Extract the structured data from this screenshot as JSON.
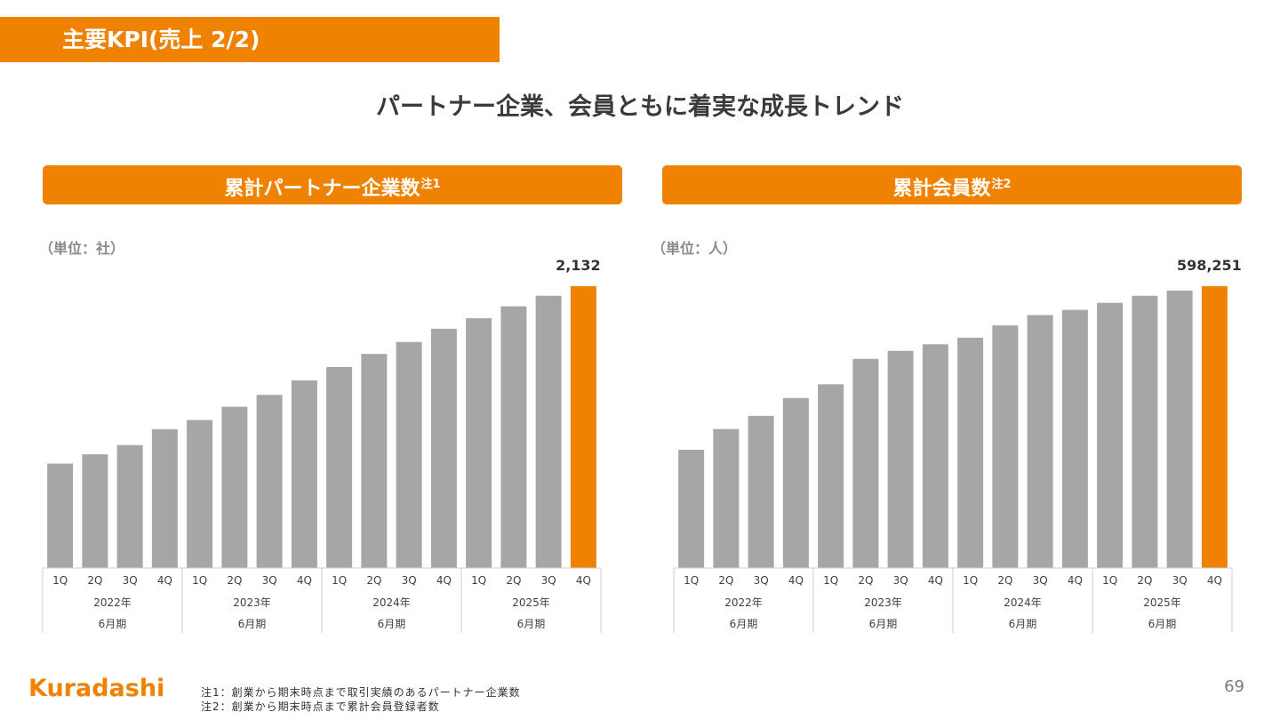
{
  "page": {
    "title": "主要KPI(売上 2/2)",
    "headline": "パートナー企業、会員ともに着実な成長トレンド",
    "page_number": "69",
    "accent_color": "#ef8200",
    "bar_color": "#a6a6a6",
    "logo_text": "Kuradashi",
    "notes": [
      "注1：創業から期末時点まで取引実績のあるパートナー企業数",
      "注2：創業から期末時点まで累計会員登録者数"
    ]
  },
  "panels": [
    {
      "title": "累計パートナー企業数",
      "note_mark": "注1",
      "unit": "（単位：社）"
    },
    {
      "title": "累計会員数",
      "note_mark": "注2",
      "unit": "（単位：人）"
    }
  ],
  "chart_data": [
    {
      "type": "bar",
      "title": "累計パートナー企業数",
      "categories": [
        "1Q",
        "2Q",
        "3Q",
        "4Q",
        "1Q",
        "2Q",
        "3Q",
        "4Q",
        "1Q",
        "2Q",
        "3Q",
        "4Q",
        "1Q",
        "2Q",
        "3Q",
        "4Q"
      ],
      "groups": [
        {
          "year": "2022年",
          "period": "6月期"
        },
        {
          "year": "2023年",
          "period": "6月期"
        },
        {
          "year": "2024年",
          "period": "6月期"
        },
        {
          "year": "2025年",
          "period": "6月期"
        }
      ],
      "values": [
        790,
        860,
        930,
        1050,
        1120,
        1220,
        1310,
        1420,
        1520,
        1620,
        1710,
        1810,
        1890,
        1980,
        2060,
        2132
      ],
      "data_labels": [
        "",
        "",
        "",
        "",
        "",
        "",
        "",
        "",
        "",
        "",
        "",
        "",
        "",
        "",
        "",
        "2,132"
      ],
      "highlight_index": 15,
      "ylim": [
        0,
        2132
      ],
      "xlabel": "",
      "ylabel": ""
    },
    {
      "type": "bar",
      "title": "累計会員数",
      "categories": [
        "1Q",
        "2Q",
        "3Q",
        "4Q",
        "1Q",
        "2Q",
        "3Q",
        "4Q",
        "1Q",
        "2Q",
        "3Q",
        "4Q",
        "1Q",
        "2Q",
        "3Q",
        "4Q"
      ],
      "groups": [
        {
          "year": "2022年",
          "period": "6月期"
        },
        {
          "year": "2023年",
          "period": "6月期"
        },
        {
          "year": "2024年",
          "period": "6月期"
        },
        {
          "year": "2025年",
          "period": "6月期"
        }
      ],
      "values": [
        251000,
        295000,
        323000,
        361000,
        390000,
        444000,
        461000,
        475000,
        489000,
        515000,
        537000,
        548000,
        563000,
        578000,
        589000,
        598251
      ],
      "data_labels": [
        "",
        "",
        "",
        "",
        "",
        "",
        "",
        "",
        "",
        "",
        "",
        "",
        "",
        "",
        "",
        "598,251"
      ],
      "highlight_index": 15,
      "ylim": [
        0,
        598251
      ],
      "xlabel": "",
      "ylabel": ""
    }
  ]
}
